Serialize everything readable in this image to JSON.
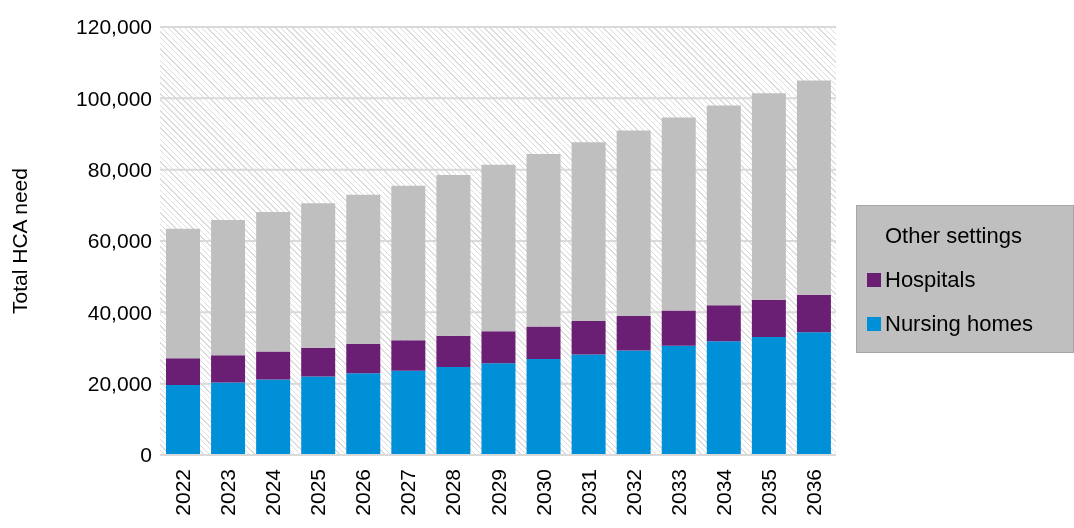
{
  "chart_data": {
    "type": "bar",
    "stacked": true,
    "categories": [
      "2022",
      "2023",
      "2024",
      "2025",
      "2026",
      "2027",
      "2028",
      "2029",
      "2030",
      "2031",
      "2032",
      "2033",
      "2034",
      "2035",
      "2036"
    ],
    "series": [
      {
        "name": "Nursing homes",
        "color": "#0090d8",
        "values": [
          19600,
          20300,
          21200,
          22000,
          22900,
          23600,
          24700,
          25700,
          26900,
          28200,
          29300,
          30600,
          31900,
          33100,
          34400
        ]
      },
      {
        "name": "Hospitals",
        "color": "#6b1f74",
        "values": [
          7500,
          7700,
          7800,
          8100,
          8200,
          8600,
          8700,
          9000,
          9100,
          9400,
          9700,
          9900,
          10100,
          10400,
          10500
        ]
      },
      {
        "name": "Other settings",
        "color": "#bfbfbf",
        "values": [
          36300,
          37900,
          39100,
          40500,
          41900,
          43300,
          45100,
          46700,
          48400,
          50100,
          52000,
          54100,
          56000,
          57900,
          60100
        ]
      }
    ],
    "ylabel": "Total HCA need",
    "ylim": [
      0,
      120000
    ],
    "yticks": [
      0,
      {
        "value": 20000,
        "label": "20,000"
      },
      {
        "value": 40000,
        "label": "40,000"
      },
      {
        "value": 60000,
        "label": "60,000"
      },
      {
        "value": 80000,
        "label": "80,000"
      },
      {
        "value": 100000,
        "label": "100,000"
      },
      {
        "value": 120000,
        "label": "120,000"
      }
    ],
    "grid": "y",
    "legend": "right"
  }
}
